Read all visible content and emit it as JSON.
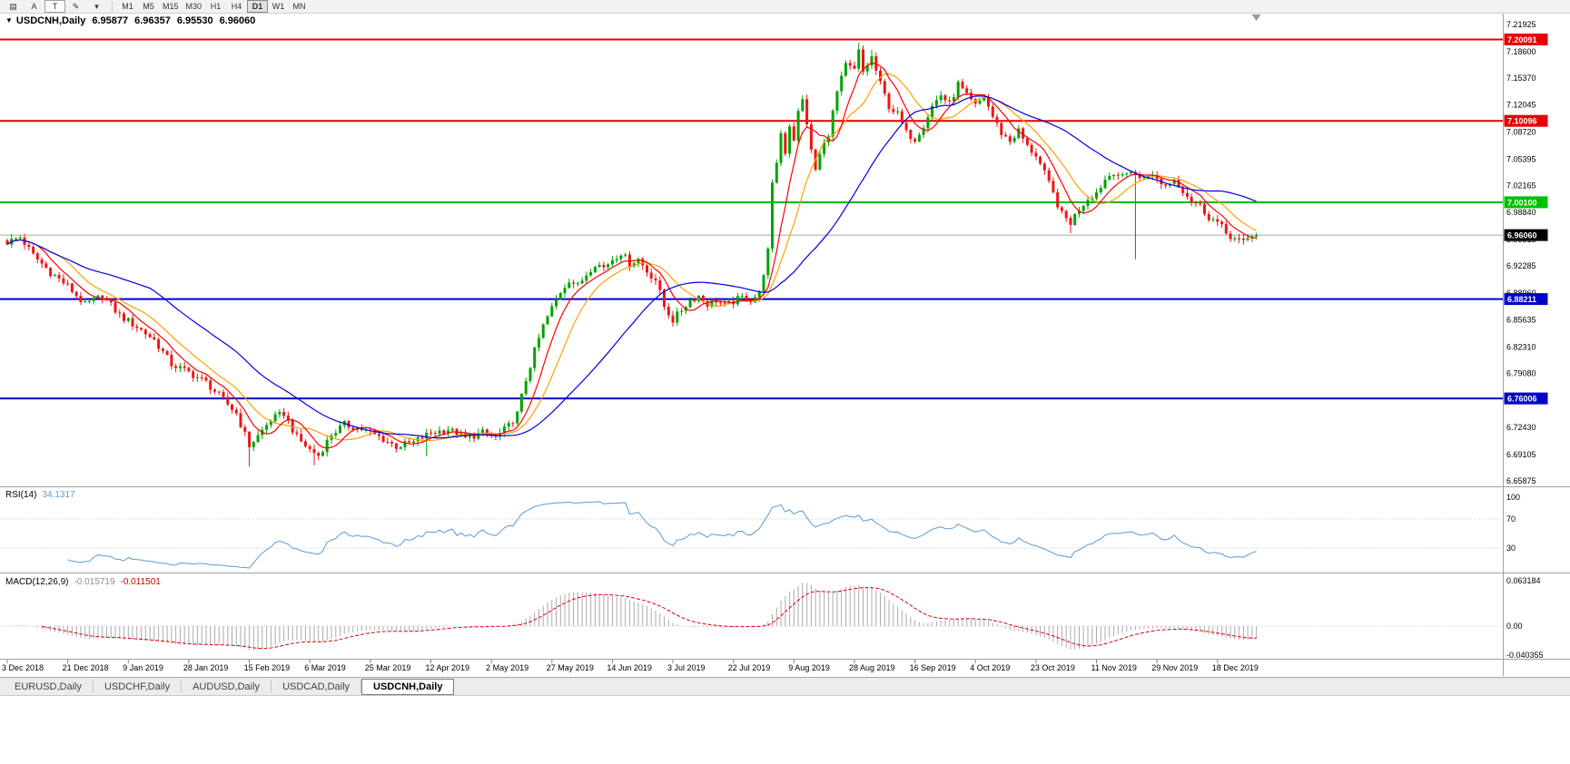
{
  "toolbar": {
    "icons": [
      {
        "name": "chart-bars-icon",
        "glyph": "▤",
        "boxed": false
      },
      {
        "name": "annotations-button",
        "glyph": "A",
        "boxed": false
      },
      {
        "name": "text-tool-button",
        "glyph": "T",
        "boxed": true
      },
      {
        "name": "draw-tool-button",
        "glyph": "✎",
        "boxed": false
      },
      {
        "name": "draw-tool-dropdown-icon",
        "glyph": "▾",
        "boxed": false
      }
    ],
    "timeframes": [
      "M1",
      "M5",
      "M15",
      "M30",
      "H1",
      "H4",
      "D1",
      "W1",
      "MN"
    ],
    "active_timeframe": "D1"
  },
  "chart": {
    "symbol_line": {
      "dropdown_glyph": "▼",
      "symbol": "USDCNH,Daily",
      "open": "6.95877",
      "high": "6.96357",
      "low": "6.95530",
      "close": "6.96060"
    },
    "price_axis_labels": [
      "7.21925",
      "7.18600",
      "7.15370",
      "7.12045",
      "7.08720",
      "7.05395",
      "7.02165",
      "6.98840",
      "6.95515",
      "6.92285",
      "6.88960",
      "6.85635",
      "6.82310",
      "6.79080",
      "6.75755",
      "6.72430",
      "6.69105",
      "6.65875"
    ],
    "levels": [
      {
        "value": 7.20091,
        "label": "7.20091",
        "color": "#e60000",
        "type": "resistance-line"
      },
      {
        "value": 7.10096,
        "label": "7.10096",
        "color": "#e60000",
        "type": "resistance-line"
      },
      {
        "value": 7.001,
        "label": "7.00100",
        "color": "#00c000",
        "type": "support-line"
      },
      {
        "value": 6.9606,
        "label": "6.96060",
        "color": "#000000",
        "type": "current-price"
      },
      {
        "value": 6.88211,
        "label": "6.88211",
        "color": "#0000c8",
        "type": "support-line"
      },
      {
        "value": 6.76006,
        "label": "6.76006",
        "color": "#0000c8",
        "type": "support-line"
      }
    ],
    "dates": [
      "3 Dec 2018",
      "21 Dec 2018",
      "9 Jan 2019",
      "28 Jan 2019",
      "15 Feb 2019",
      "6 Mar 2019",
      "25 Mar 2019",
      "12 Apr 2019",
      "2 May 2019",
      "27 May 2019",
      "14 Jun 2019",
      "3 Jul 2019",
      "22 Jul 2019",
      "9 Aug 2019",
      "28 Aug 2019",
      "16 Sep 2019",
      "4 Oct 2019",
      "23 Oct 2019",
      "11 Nov 2019",
      "29 Nov 2019",
      "18 Dec 2019"
    ]
  },
  "chart_data": {
    "type": "candlestick",
    "symbol": "USDCNH",
    "timeframe": "Daily",
    "count": 290,
    "label_every": 14,
    "y_axis": {
      "min": 6.65875,
      "max": 7.21925,
      "tick": 0.03325
    },
    "anchors": [
      [
        0,
        6.952
      ],
      [
        3,
        6.958
      ],
      [
        6,
        6.936
      ],
      [
        10,
        6.915
      ],
      [
        14,
        6.898
      ],
      [
        18,
        6.875
      ],
      [
        22,
        6.886
      ],
      [
        26,
        6.862
      ],
      [
        30,
        6.848
      ],
      [
        34,
        6.832
      ],
      [
        38,
        6.802
      ],
      [
        42,
        6.792
      ],
      [
        46,
        6.78
      ],
      [
        50,
        6.758
      ],
      [
        53,
        6.742
      ],
      [
        56,
        6.702
      ],
      [
        58,
        6.714
      ],
      [
        61,
        6.734
      ],
      [
        64,
        6.742
      ],
      [
        67,
        6.712
      ],
      [
        70,
        6.697
      ],
      [
        72,
        6.69
      ],
      [
        75,
        6.716
      ],
      [
        78,
        6.728
      ],
      [
        82,
        6.722
      ],
      [
        86,
        6.713
      ],
      [
        90,
        6.701
      ],
      [
        94,
        6.706
      ],
      [
        98,
        6.718
      ],
      [
        102,
        6.722
      ],
      [
        106,
        6.711
      ],
      [
        110,
        6.718
      ],
      [
        113,
        6.712
      ],
      [
        116,
        6.726
      ],
      [
        118,
        6.741
      ],
      [
        120,
        6.783
      ],
      [
        122,
        6.818
      ],
      [
        124,
        6.849
      ],
      [
        126,
        6.871
      ],
      [
        128,
        6.891
      ],
      [
        130,
        6.906
      ],
      [
        132,
        6.898
      ],
      [
        134,
        6.913
      ],
      [
        136,
        6.926
      ],
      [
        138,
        6.921
      ],
      [
        140,
        6.931
      ],
      [
        142,
        6.939
      ],
      [
        144,
        6.926
      ],
      [
        146,
        6.931
      ],
      [
        148,
        6.916
      ],
      [
        150,
        6.906
      ],
      [
        152,
        6.873
      ],
      [
        154,
        6.856
      ],
      [
        156,
        6.869
      ],
      [
        158,
        6.881
      ],
      [
        160,
        6.886
      ],
      [
        162,
        6.876
      ],
      [
        164,
        6.881
      ],
      [
        166,
        6.873
      ],
      [
        168,
        6.879
      ],
      [
        170,
        6.884
      ],
      [
        172,
        6.881
      ],
      [
        174,
        6.889
      ],
      [
        176,
        6.941
      ],
      [
        177,
        7.021
      ],
      [
        178,
        7.051
      ],
      [
        179,
        7.086
      ],
      [
        180,
        7.063
      ],
      [
        181,
        7.096
      ],
      [
        182,
        7.079
      ],
      [
        183,
        7.111
      ],
      [
        184,
        7.126
      ],
      [
        185,
        7.099
      ],
      [
        186,
        7.063
      ],
      [
        187,
        7.041
      ],
      [
        188,
        7.059
      ],
      [
        190,
        7.086
      ],
      [
        192,
        7.136
      ],
      [
        194,
        7.169
      ],
      [
        196,
        7.163
      ],
      [
        197,
        7.186
      ],
      [
        198,
        7.161
      ],
      [
        200,
        7.179
      ],
      [
        202,
        7.146
      ],
      [
        204,
        7.119
      ],
      [
        206,
        7.109
      ],
      [
        208,
        7.086
      ],
      [
        210,
        7.079
      ],
      [
        212,
        7.096
      ],
      [
        214,
        7.119
      ],
      [
        216,
        7.133
      ],
      [
        218,
        7.121
      ],
      [
        220,
        7.146
      ],
      [
        222,
        7.131
      ],
      [
        224,
        7.119
      ],
      [
        226,
        7.131
      ],
      [
        228,
        7.106
      ],
      [
        230,
        7.086
      ],
      [
        232,
        7.076
      ],
      [
        234,
        7.089
      ],
      [
        236,
        7.069
      ],
      [
        238,
        7.059
      ],
      [
        240,
        7.036
      ],
      [
        242,
        7.011
      ],
      [
        244,
        6.986
      ],
      [
        246,
        6.976
      ],
      [
        248,
        6.993
      ],
      [
        250,
        7.006
      ],
      [
        252,
        7.013
      ],
      [
        254,
        7.029
      ],
      [
        256,
        7.039
      ],
      [
        258,
        7.031
      ],
      [
        260,
        7.041
      ],
      [
        262,
        7.029
      ],
      [
        264,
        7.036
      ],
      [
        266,
        7.029
      ],
      [
        268,
        7.021
      ],
      [
        270,
        7.029
      ],
      [
        272,
        7.016
      ],
      [
        274,
        7.003
      ],
      [
        276,
        6.996
      ],
      [
        278,
        6.983
      ],
      [
        280,
        6.976
      ],
      [
        282,
        6.963
      ],
      [
        284,
        6.956
      ],
      [
        286,
        6.951
      ],
      [
        288,
        6.961
      ],
      [
        289,
        6.9606
      ]
    ],
    "wick_overrides": [
      {
        "i": 56,
        "low": 6.676
      },
      {
        "i": 71,
        "low": 6.678
      },
      {
        "i": 97,
        "low": 6.689
      },
      {
        "i": 197,
        "high": 7.1965
      },
      {
        "i": 200,
        "high": 7.188
      },
      {
        "i": 234,
        "high": 7.096
      },
      {
        "i": 246,
        "low": 6.963
      },
      {
        "i": 261,
        "low": 6.931
      }
    ],
    "last_candle": {
      "open": 6.95877,
      "high": 6.96357,
      "low": 6.9553,
      "close": 6.9606
    },
    "moving_averages": [
      {
        "period": 13,
        "color": "#ffa000",
        "name": "ma-medium-orange"
      },
      {
        "period": 7,
        "color": "#ff0000",
        "name": "ma-fast-red"
      },
      {
        "period": 34,
        "color": "#0000e0",
        "name": "ma-slow-blue"
      }
    ],
    "indicators": {
      "rsi": {
        "name": "RSI",
        "period": 14,
        "label": "RSI(14)",
        "value": "34.1317",
        "levels": [
          70,
          30
        ],
        "axis_labels": [
          "100",
          "70",
          "30"
        ],
        "line_color": "#5b9bd5"
      },
      "macd": {
        "name": "MACD",
        "params": "12,26,9",
        "label": "MACD(12,26,9)",
        "main_value": "-0.015719",
        "signal_value": "-0.011501",
        "axis_labels": [
          "0.063184",
          "0.00",
          "-0.040355"
        ],
        "axis_max": 0.063184,
        "axis_min": -0.040355,
        "hist_color": "#ababab",
        "signal_color": "#e00000"
      }
    }
  },
  "colors": {
    "candle_up": "#00a300",
    "candle_down": "#f01414",
    "current_price_line": "#a8a8a8",
    "grid_dotted": "#c8c8c8",
    "panel_separator": "#a0a0a0",
    "axis_text": "#000000"
  },
  "tabs": {
    "items": [
      "EURUSD,Daily",
      "USDCHF,Daily",
      "AUDUSD,Daily",
      "USDCAD,Daily",
      "USDCNH,Daily"
    ],
    "active": "USDCNH,Daily"
  }
}
